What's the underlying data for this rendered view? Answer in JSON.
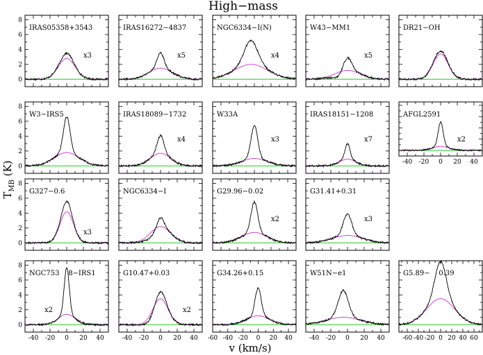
{
  "chart_data": {
    "type": "line",
    "title": "High−mass",
    "xlabel": "v (km/s)",
    "ylabel": "T_MB (K)",
    "ylabel_main": "T",
    "ylabel_sub": "MB",
    "ylabel_unit": " (K)",
    "grid": false,
    "ylim": [
      -1,
      8.6
    ],
    "yticks": [
      0,
      2,
      4,
      6,
      8
    ],
    "xticks_standard": [
      -40,
      -20,
      0,
      20,
      40
    ],
    "xticks_wide": [
      -60,
      -40,
      -20,
      0,
      20,
      40
    ],
    "xticks_g589": [
      -60,
      -40,
      -20,
      0,
      20,
      40,
      60
    ],
    "line_colors": {
      "spectrum": "#000000",
      "fit": "#cc33cc",
      "baseline": "#22cc22"
    },
    "panels": [
      {
        "name": "IRAS05358+3543",
        "scale": "x3",
        "row": 0,
        "col": 0,
        "xlim": [
          -50,
          50
        ],
        "peak": 3.5,
        "width": 6,
        "broad_amp": 2.8,
        "broad_width": 10,
        "center": 0,
        "dip": 0
      },
      {
        "name": "IRAS16272−4837",
        "scale": "x5",
        "row": 0,
        "col": 1,
        "xlim": [
          -50,
          50
        ],
        "peak": 3.6,
        "width": 4,
        "broad_amp": 1.5,
        "broad_width": 14,
        "center": 0,
        "dip": 0
      },
      {
        "name": "NGC6334−I(N)",
        "scale": "x4",
        "row": 0,
        "col": 2,
        "xlim": [
          -50,
          50
        ],
        "peak": 5.2,
        "width": 8,
        "broad_amp": 2.0,
        "broad_width": 20,
        "center": -4,
        "dip": 0
      },
      {
        "name": "W43−MM1",
        "scale": "x5",
        "row": 0,
        "col": 3,
        "xlim": [
          -50,
          50
        ],
        "peak": 3.0,
        "width": 5,
        "broad_amp": 1.2,
        "broad_width": 15,
        "center": 0,
        "dip": -0.6
      },
      {
        "name": "DR21−OH",
        "scale": "",
        "row": 0,
        "col": 4,
        "xlim": [
          -50,
          50
        ],
        "peak": 3.8,
        "width": 7,
        "broad_amp": 3.4,
        "broad_width": 9,
        "center": 0,
        "dip": 0
      },
      {
        "name": "W3−IRS5",
        "scale": "",
        "row": 1,
        "col": 0,
        "xlim": [
          -50,
          50
        ],
        "peak": 6.6,
        "width": 4,
        "broad_amp": 1.8,
        "broad_width": 15,
        "center": 0,
        "dip": 0
      },
      {
        "name": "IRAS18089−1732",
        "scale": "x4",
        "row": 1,
        "col": 1,
        "xlim": [
          -50,
          50
        ],
        "peak": 4.1,
        "width": 4,
        "broad_amp": 1.7,
        "broad_width": 12,
        "center": 0,
        "dip": 0
      },
      {
        "name": "W33A",
        "scale": "x3",
        "row": 1,
        "col": 2,
        "xlim": [
          -50,
          50
        ],
        "peak": 5.4,
        "width": 4,
        "broad_amp": 1.0,
        "broad_width": 15,
        "center": 0,
        "dip": 0
      },
      {
        "name": "IRAS18151−1208",
        "scale": "x7",
        "row": 1,
        "col": 3,
        "xlim": [
          -50,
          50
        ],
        "peak": 3.0,
        "width": 3,
        "broad_amp": 0.9,
        "broad_width": 10,
        "center": 0,
        "dip": 0
      },
      {
        "name": "AFGL2591",
        "scale": "x2",
        "row": 1,
        "col": 4,
        "xlim": [
          -50,
          50
        ],
        "peak": 5.0,
        "width": 3,
        "broad_amp": 0.7,
        "broad_width": 10,
        "center": 0,
        "dip": 0
      },
      {
        "name": "G327−0.6",
        "scale": "x3",
        "row": 2,
        "col": 0,
        "xlim": [
          -50,
          50
        ],
        "peak": 5.6,
        "width": 5,
        "broad_amp": 4.2,
        "broad_width": 8,
        "center": 0,
        "dip": 0
      },
      {
        "name": "NGC6334−I",
        "scale": "",
        "row": 2,
        "col": 1,
        "xlim": [
          -50,
          50
        ],
        "peak": 3.5,
        "width": 4,
        "broad_amp": 2.2,
        "broad_width": 12,
        "center": 0,
        "dip": -0.6
      },
      {
        "name": "G29.96−0.02",
        "scale": "x2",
        "row": 2,
        "col": 2,
        "xlim": [
          -50,
          50
        ],
        "peak": 5.5,
        "width": 4,
        "broad_amp": 1.4,
        "broad_width": 15,
        "center": 0,
        "dip": 0
      },
      {
        "name": "G31.41+0.31",
        "scale": "x3",
        "row": 2,
        "col": 3,
        "xlim": [
          -50,
          50
        ],
        "peak": 3.9,
        "width": 5,
        "broad_amp": 1.0,
        "broad_width": 18,
        "center": 0,
        "dip": 0
      },
      {
        "name": "NGC753    8−IRS1",
        "scale": "x2",
        "row": 3,
        "col": 0,
        "xlim": [
          -50,
          50
        ],
        "peak": 7.7,
        "width": 3,
        "broad_amp": 1.4,
        "broad_width": 10,
        "center": 0,
        "dip": 0
      },
      {
        "name": "G10.47+0.03",
        "scale": "x2",
        "row": 3,
        "col": 1,
        "xlim": [
          -50,
          50
        ],
        "peak": 4.5,
        "width": 5,
        "broad_amp": 3.5,
        "broad_width": 9,
        "center": 0,
        "dip": -0.5
      },
      {
        "name": "G34.26+0.15",
        "scale": "",
        "row": 3,
        "col": 2,
        "xlim": [
          -60,
          50
        ],
        "peak": 4.9,
        "width": 4,
        "broad_amp": 1.2,
        "broad_width": 15,
        "center": 0,
        "dip": 0
      },
      {
        "name": "W51N−e1",
        "scale": "",
        "row": 3,
        "col": 3,
        "xlim": [
          -50,
          50
        ],
        "peak": 4.6,
        "width": 6,
        "broad_amp": 1.0,
        "broad_width": 20,
        "center": -5,
        "dip": 0
      },
      {
        "name": "G5.89−    0.39",
        "scale": "",
        "row": 3,
        "col": 4,
        "xlim": [
          -75,
          75
        ],
        "peak": 8.5,
        "width": 10,
        "broad_amp": 3.5,
        "broad_width": 25,
        "center": 0,
        "dip": 0
      }
    ]
  }
}
